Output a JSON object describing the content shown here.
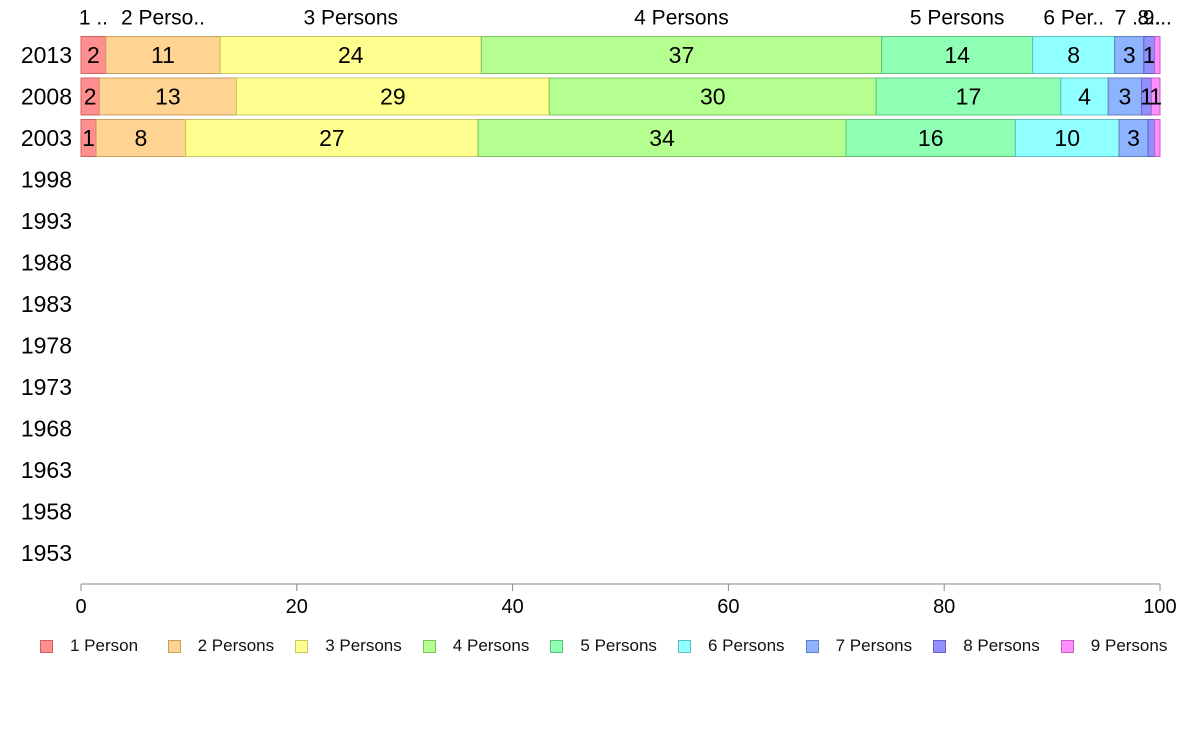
{
  "chart_data": {
    "type": "bar",
    "orientation": "horizontal",
    "stacked": true,
    "title": "",
    "xlabel": "",
    "ylabel": "",
    "xlim": [
      0,
      100
    ],
    "x_ticks": [
      0,
      20,
      40,
      60,
      80,
      100
    ],
    "categories": [
      "2013",
      "2008",
      "2003",
      "1998",
      "1993",
      "1988",
      "1983",
      "1978",
      "1973",
      "1968",
      "1963",
      "1958",
      "1953"
    ],
    "top_labels": [
      "1 ..",
      "2 Perso..",
      "3 Persons",
      "4 Persons",
      "5 Persons",
      "6 Per..",
      "7 ..",
      "8..",
      "9..."
    ],
    "series": [
      {
        "name": "1 Person",
        "color": "#ff8f8f",
        "stroke": "#d06060",
        "values": [
          2.3,
          1.7,
          1.4,
          null,
          null,
          null,
          null,
          null,
          null,
          null,
          null,
          null,
          null
        ]
      },
      {
        "name": "2 Persons",
        "color": "#ffd493",
        "stroke": "#c8a060",
        "values": [
          10.6,
          12.7,
          8.3,
          null,
          null,
          null,
          null,
          null,
          null,
          null,
          null,
          null,
          null
        ]
      },
      {
        "name": "3 Persons",
        "color": "#ffff8f",
        "stroke": "#c8c860",
        "values": [
          24.2,
          29.0,
          27.1,
          null,
          null,
          null,
          null,
          null,
          null,
          null,
          null,
          null,
          null
        ]
      },
      {
        "name": "4 Persons",
        "color": "#b4ff8f",
        "stroke": "#80c060",
        "values": [
          37.1,
          30.3,
          34.1,
          null,
          null,
          null,
          null,
          null,
          null,
          null,
          null,
          null,
          null
        ]
      },
      {
        "name": "5 Persons",
        "color": "#8fffb4",
        "stroke": "#60c080",
        "values": [
          14.0,
          17.1,
          15.7,
          null,
          null,
          null,
          null,
          null,
          null,
          null,
          null,
          null,
          null
        ]
      },
      {
        "name": "6 Persons",
        "color": "#8fffff",
        "stroke": "#60c0c0",
        "values": [
          7.6,
          4.4,
          9.6,
          null,
          null,
          null,
          null,
          null,
          null,
          null,
          null,
          null,
          null
        ]
      },
      {
        "name": "7 Persons",
        "color": "#8fb4ff",
        "stroke": "#6080c0",
        "values": [
          2.7,
          3.1,
          2.7,
          null,
          null,
          null,
          null,
          null,
          null,
          null,
          null,
          null,
          null
        ]
      },
      {
        "name": "8 Persons",
        "color": "#948fff",
        "stroke": "#6460c0",
        "values": [
          1.0,
          0.9,
          0.6,
          null,
          null,
          null,
          null,
          null,
          null,
          null,
          null,
          null,
          null
        ]
      },
      {
        "name": "9 Persons",
        "color": "#ff8fff",
        "stroke": "#c060c0",
        "values": [
          0.5,
          0.8,
          0.5,
          null,
          null,
          null,
          null,
          null,
          null,
          null,
          null,
          null,
          null
        ]
      }
    ],
    "data_labels": [
      [
        "2",
        "11",
        "24",
        "37",
        "14",
        "8",
        "3",
        "1",
        ""
      ],
      [
        "2",
        "13",
        "29",
        "30",
        "17",
        "4",
        "3",
        "1",
        "1"
      ],
      [
        "1",
        "8",
        "27",
        "34",
        "16",
        "10",
        "3",
        "",
        ""
      ]
    ],
    "legend": {
      "placement": "bottom"
    },
    "grid": false
  }
}
